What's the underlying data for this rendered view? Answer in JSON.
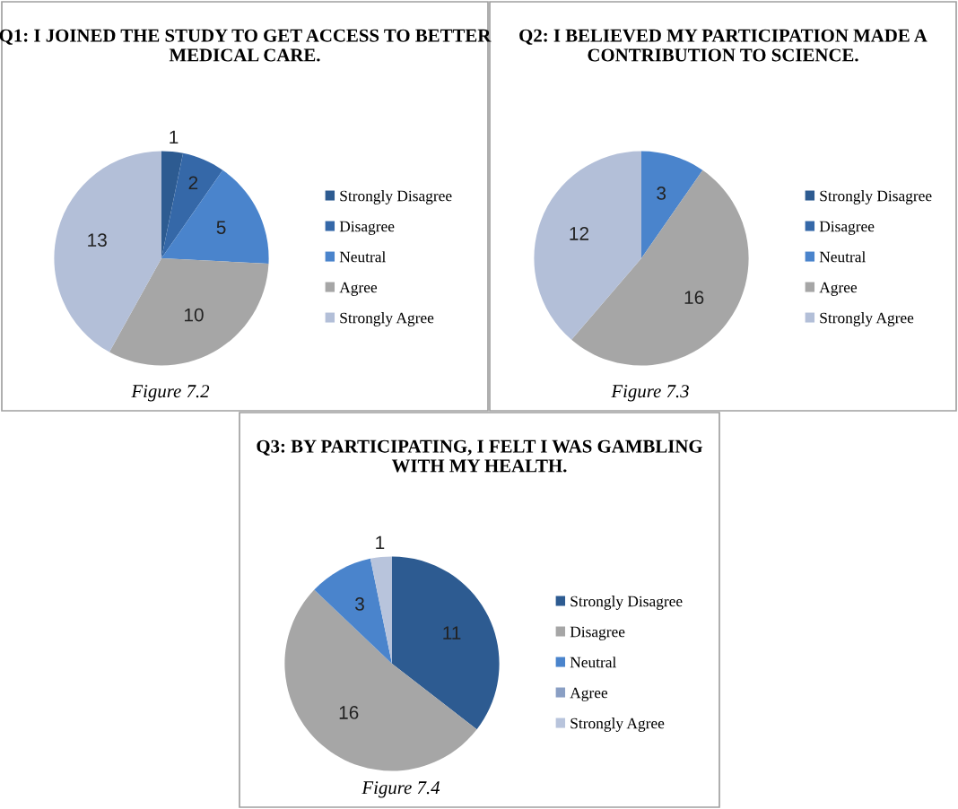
{
  "chart_data": [
    {
      "type": "pie",
      "title": "Q1: I JOINED THE STUDY TO GET ACCESS TO BETTER MEDICAL CARE.",
      "categories": [
        "Strongly Disagree",
        "Disagree",
        "Neutral",
        "Agree",
        "Strongly Agree"
      ],
      "values": [
        1,
        2,
        5,
        10,
        13
      ],
      "colors": [
        "#2d5b91",
        "#3568a8",
        "#4a84cc",
        "#a6a6a6",
        "#b3bfd8"
      ],
      "value_labels": [
        "1",
        "2",
        "5",
        "10",
        "13"
      ],
      "legend": "right",
      "annotations": [
        "Figure 7.2"
      ]
    },
    {
      "type": "pie",
      "title": "Q2: I BELIEVED MY PARTICIPATION MADE A CONTRIBUTION TO SCIENCE.",
      "categories": [
        "Strongly Disagree",
        "Disagree",
        "Neutral",
        "Agree",
        "Strongly Agree"
      ],
      "values": [
        0,
        0,
        3,
        16,
        12
      ],
      "colors": [
        "#2d5b91",
        "#3568a8",
        "#4a84cc",
        "#a6a6a6",
        "#b3bfd8"
      ],
      "value_labels": [
        null,
        null,
        "3",
        "16",
        "12"
      ],
      "legend": "right",
      "annotations": [
        "Figure 7.3"
      ]
    },
    {
      "type": "pie",
      "title": "Q3: BY PARTICIPATING, I FELT I WAS GAMBLING WITH MY HEALTH.",
      "categories": [
        "Strongly Disagree",
        "Disagree",
        "Neutral",
        "Agree",
        "Strongly Agree"
      ],
      "values": [
        11,
        16,
        3,
        0,
        1
      ],
      "colors": [
        "#2d5b91",
        "#a6a6a6",
        "#4a84cc",
        "#8a9fc4",
        "#b8c4dc"
      ],
      "value_labels": [
        "11",
        "16",
        "3",
        null,
        "1"
      ],
      "legend": "right",
      "annotations": [
        "Figure 7.4"
      ]
    }
  ]
}
